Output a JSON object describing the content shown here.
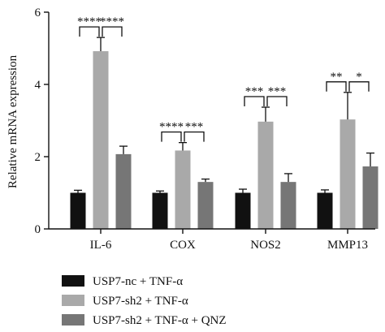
{
  "chart_data": {
    "type": "bar",
    "ylabel": "Relative mRNA expression",
    "xlabel": "",
    "ylim": [
      0,
      6
    ],
    "yticks": [
      0,
      2,
      4,
      6
    ],
    "categories": [
      "IL-6",
      "COX",
      "NOS2",
      "MMP13"
    ],
    "series": [
      {
        "name": "USP7-nc + TNF-α",
        "color": "#111111",
        "values": [
          1.0,
          1.0,
          1.0,
          1.0
        ],
        "errors": [
          0.07,
          0.05,
          0.1,
          0.08
        ]
      },
      {
        "name": "USP7-sh2 + TNF-α",
        "color": "#a9a9a9",
        "values": [
          4.92,
          2.17,
          2.97,
          3.03
        ],
        "errors": [
          0.38,
          0.22,
          0.4,
          0.75
        ]
      },
      {
        "name": "USP7-sh2 + TNF-α + QNZ",
        "color": "#767676",
        "values": [
          2.07,
          1.3,
          1.3,
          1.73
        ],
        "errors": [
          0.22,
          0.08,
          0.23,
          0.37
        ]
      }
    ],
    "significance": [
      {
        "category": "IL-6",
        "left": "****",
        "right": "****"
      },
      {
        "category": "COX",
        "left": "****",
        "right": "***"
      },
      {
        "category": "NOS2",
        "left": "***",
        "right": "***"
      },
      {
        "category": "MMP13",
        "left": "**",
        "right": "*"
      }
    ],
    "grid": false,
    "legend_position": "bottom"
  }
}
